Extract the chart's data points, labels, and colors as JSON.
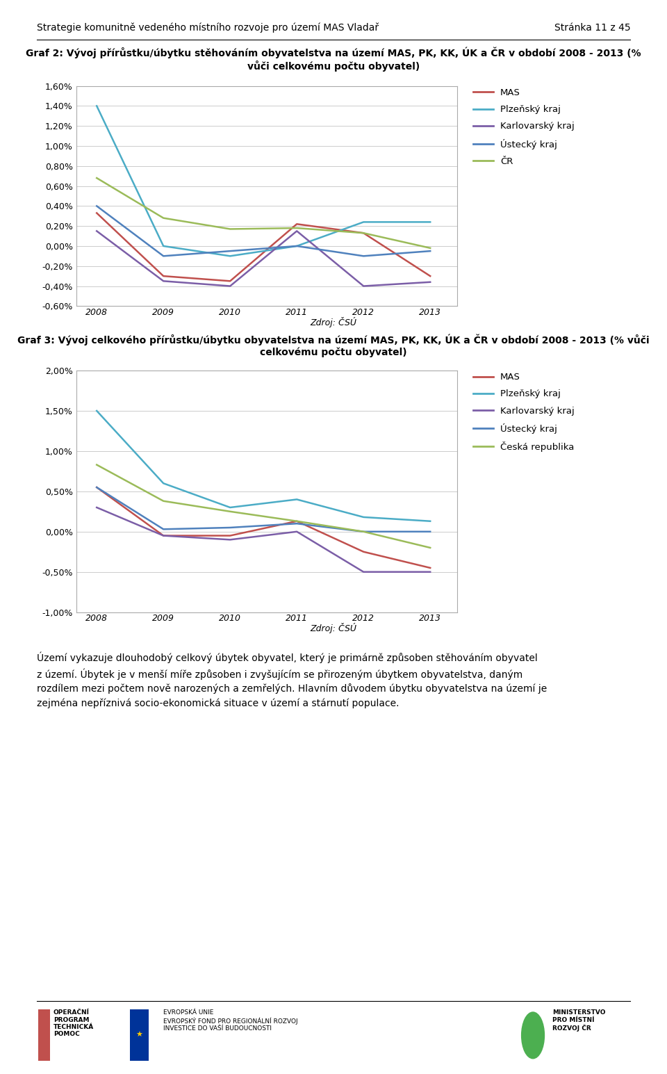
{
  "page_header": "Strategie komunitně vedeného místního rozvoje pro území MAS Vladař",
  "page_number": "Stránka 11 z 45",
  "chart1_title_line1": "Graf 2: Vývoj přírůstku/úbytku stěhováním obyvatelstva na území MAS, PK, KK, ÚK a ČR v období 2008 - 2013 (%",
  "chart1_title_line2": "vůči celkovému počtu obyvatel)",
  "chart2_title_line1": "Graf 3: Vývoj celkového přírůstku/úbytku obyvatelstva na území MAS, PK, KK, ÚK a ČR v období 2008 - 2013 (% vůči",
  "chart2_title_line2": "celkovému počtu obyvatel)",
  "years": [
    2008,
    2009,
    2010,
    2011,
    2012,
    2013
  ],
  "chart1": {
    "MAS": [
      0.0033,
      -0.003,
      -0.0035,
      0.0022,
      0.0013,
      -0.003
    ],
    "Plzeňský kraj": [
      0.014,
      0.0,
      -0.001,
      0.0,
      0.0024,
      0.0024
    ],
    "Karlovarský kraj": [
      0.0015,
      -0.0035,
      -0.004,
      0.0015,
      -0.004,
      -0.0036
    ],
    "Ústecký kraj": [
      0.004,
      -0.001,
      -0.0005,
      0.0,
      -0.001,
      -0.0005
    ],
    "ČR": [
      0.0068,
      0.0028,
      0.0017,
      0.0018,
      0.0013,
      -0.0002
    ],
    "ylim": [
      -0.006,
      0.016
    ],
    "yticks": [
      -0.006,
      -0.004,
      -0.002,
      0.0,
      0.002,
      0.004,
      0.006,
      0.008,
      0.01,
      0.012,
      0.014,
      0.016
    ],
    "ytick_labels": [
      "-0,60%",
      "-0,40%",
      "-0,20%",
      "0,00%",
      "0,20%",
      "0,40%",
      "0,60%",
      "0,80%",
      "1,00%",
      "1,20%",
      "1,40%",
      "1,60%"
    ]
  },
  "chart2": {
    "MAS": [
      0.0055,
      -0.0005,
      -0.0005,
      0.0013,
      -0.0025,
      -0.0045
    ],
    "Plzeňský kraj": [
      0.015,
      0.006,
      0.003,
      0.004,
      0.0018,
      0.0013
    ],
    "Karlovarský kraj": [
      0.003,
      -0.0005,
      -0.001,
      0.0,
      -0.005,
      -0.005
    ],
    "Ústecký kraj": [
      0.0055,
      0.0003,
      0.0005,
      0.001,
      0.0,
      0.0
    ],
    "Česká republika": [
      0.0083,
      0.0038,
      0.0025,
      0.0013,
      0.0,
      -0.002
    ],
    "ylim": [
      -0.01,
      0.02
    ],
    "yticks": [
      -0.01,
      -0.005,
      0.0,
      0.005,
      0.01,
      0.015,
      0.02
    ],
    "ytick_labels": [
      "-1,00%",
      "-0,50%",
      "0,00%",
      "0,50%",
      "1,00%",
      "1,50%",
      "2,00%"
    ]
  },
  "colors": {
    "MAS": "#C0504D",
    "Plzeňský kraj": "#4BACC6",
    "Karlovarský kraj": "#7B5EA7",
    "Ústecký kraj": "#4F81BD",
    "ČR": "#9BBB59",
    "Česká republika": "#9BBB59"
  },
  "legend1": [
    "MAS",
    "Plzeňský kraj",
    "Karlovarský kraj",
    "Ústecký kraj",
    "ČR"
  ],
  "legend2": [
    "MAS",
    "Plzeňský kraj",
    "Karlovarský kraj",
    "Ústecký kraj",
    "Česká republika"
  ],
  "source_label": "Zdroj: ČSÚ",
  "body_text_lines": [
    "Území vykazuje dlouhodobý celkový úbytek obyvatel, který je primárně způsoben stěhováním obyvatel",
    "z území. Úbytek je v menší míře způsoben i zvyšujícím se přirozeným úbytkem obyvatelstva, daným",
    "rozdílem mezi počtem nově narozených a zemřelých. Hlavním důvodem úbytku obyvatelstva na území je",
    "zejména nepříznivá socio-ekonomická situace v území a stárnutí populace."
  ],
  "bg_color": "#FFFFFF",
  "grid_color": "#CCCCCC",
  "chart_border_color": "#AAAAAA",
  "chart_face_color": "#FFFFFF"
}
